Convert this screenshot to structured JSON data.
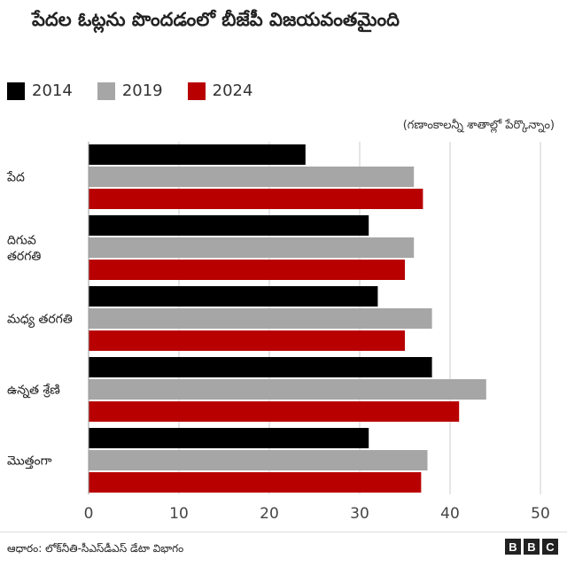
{
  "header": {
    "title": "పేదల ఓట్లను పొందడంలో బీజేపీ విజయవంతమైంది"
  },
  "note": "(గణాంకాలన్నీ శాతాల్లో పేర్కొన్నాం)",
  "footer": {
    "source": "ఆధారం: లోక్‌నీతి-సీఎస్‌డీఎస్ డేటా విభాగం",
    "logo": [
      "B",
      "B",
      "C"
    ]
  },
  "colors": {
    "2014": "#000000",
    "2019": "#a6a6a6",
    "2024": "#b80000"
  },
  "chart_data": {
    "type": "bar",
    "orientation": "horizontal",
    "title": "పేదల ఓట్లను పొందడంలో బీజేపీ విజయవంతమైంది",
    "categories": [
      "పేద",
      "దిగువ తరగతి",
      "మధ్య తరగతి",
      "ఉన్నత శ్రేణి",
      "మొత్తంగా"
    ],
    "series": [
      {
        "name": "2014",
        "values": [
          24,
          31,
          32,
          38,
          31
        ]
      },
      {
        "name": "2019",
        "values": [
          36,
          36,
          38,
          44,
          37.5
        ]
      },
      {
        "name": "2024",
        "values": [
          37,
          35,
          35,
          41,
          36.8
        ]
      }
    ],
    "xlim": [
      0,
      50
    ],
    "xticks": [
      0,
      10,
      20,
      30,
      40,
      50
    ],
    "grid": true,
    "legend": "top-left"
  }
}
